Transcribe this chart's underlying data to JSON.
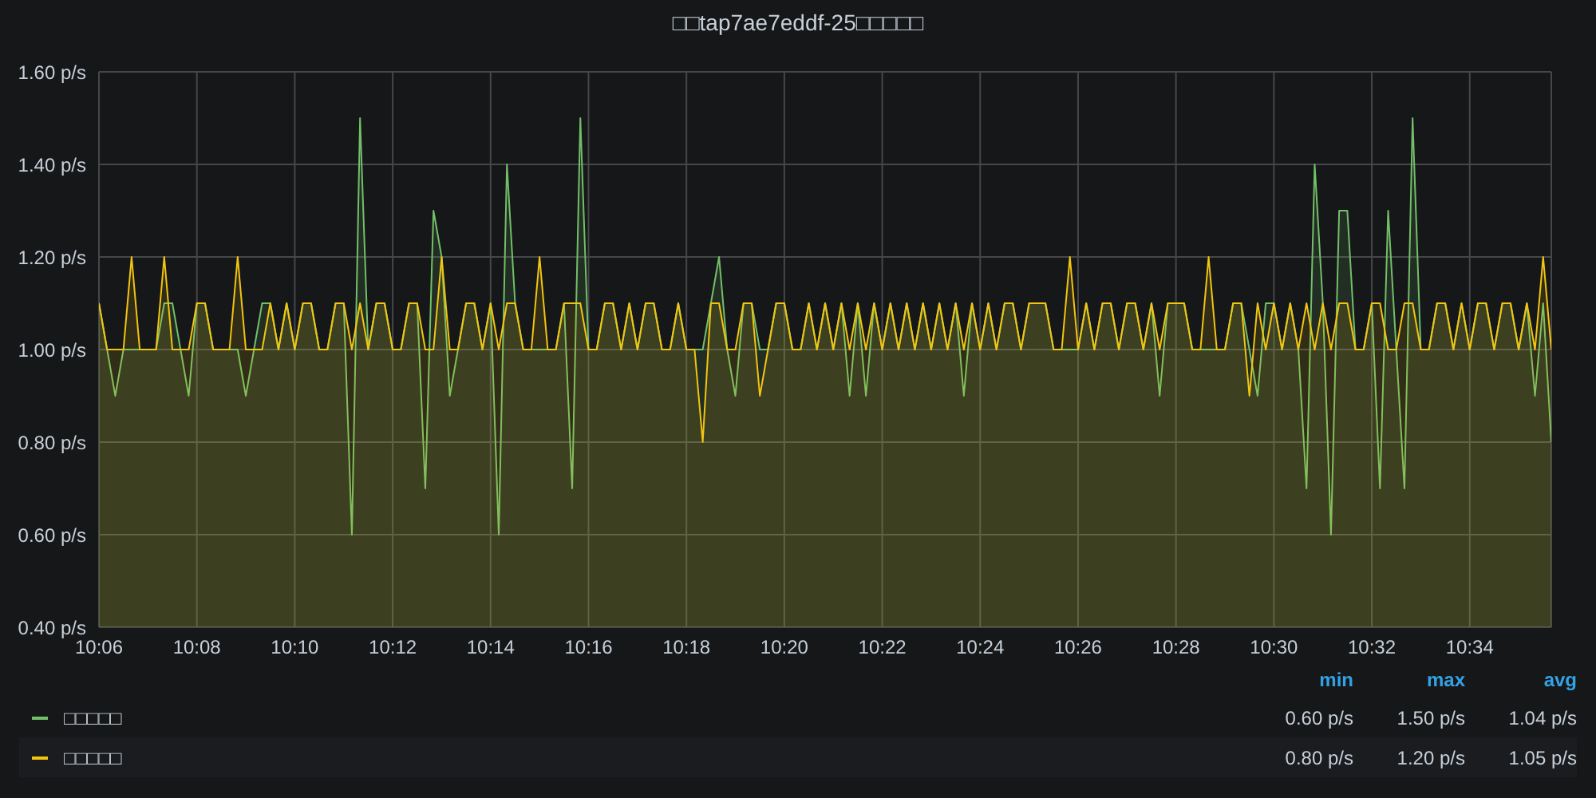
{
  "chart_data": {
    "type": "area",
    "title": "□□tap7ae7eddf-25□□□□□",
    "categories": [
      "10:06",
      null,
      null,
      null,
      null,
      null,
      null,
      null,
      null,
      null,
      null,
      null,
      "10:08",
      null,
      null,
      null,
      null,
      null,
      null,
      null,
      null,
      null,
      null,
      null,
      "10:10",
      null,
      null,
      null,
      null,
      null,
      null,
      null,
      null,
      null,
      null,
      null,
      "10:12",
      null,
      null,
      null,
      null,
      null,
      null,
      null,
      null,
      null,
      null,
      null,
      "10:14",
      null,
      null,
      null,
      null,
      null,
      null,
      null,
      null,
      null,
      null,
      null,
      "10:16",
      null,
      null,
      null,
      null,
      null,
      null,
      null,
      null,
      null,
      null,
      null,
      "10:18",
      null,
      null,
      null,
      null,
      null,
      null,
      null,
      null,
      null,
      null,
      null,
      "10:20",
      null,
      null,
      null,
      null,
      null,
      null,
      null,
      null,
      null,
      null,
      null,
      "10:22",
      null,
      null,
      null,
      null,
      null,
      null,
      null,
      null,
      null,
      null,
      null,
      "10:24",
      null,
      null,
      null,
      null,
      null,
      null,
      null,
      null,
      null,
      null,
      null,
      "10:26",
      null,
      null,
      null,
      null,
      null,
      null,
      null,
      null,
      null,
      null,
      null,
      "10:28",
      null,
      null,
      null,
      null,
      null,
      null,
      null,
      null,
      null,
      null,
      null,
      "10:30",
      null,
      null,
      null,
      null,
      null,
      null,
      null,
      null,
      null,
      null,
      null,
      "10:32",
      null,
      null,
      null,
      null,
      null,
      null,
      null,
      null,
      null,
      null,
      null,
      "10:34",
      null,
      null,
      null,
      null,
      null,
      null,
      null,
      null,
      null,
      null
    ],
    "series": [
      {
        "name": "□□□□□",
        "color": "#73bf69",
        "values": [
          1.1,
          1.0,
          0.9,
          1.0,
          1.0,
          1.0,
          1.0,
          1.0,
          1.1,
          1.1,
          1.0,
          0.9,
          1.1,
          1.1,
          1.0,
          1.0,
          1.0,
          1.0,
          0.9,
          1.0,
          1.1,
          1.1,
          1.0,
          1.1,
          1.0,
          1.1,
          1.1,
          1.0,
          1.0,
          1.1,
          1.1,
          0.6,
          1.5,
          1.0,
          1.1,
          1.1,
          1.0,
          1.0,
          1.1,
          1.1,
          0.7,
          1.3,
          1.2,
          0.9,
          1.0,
          1.1,
          1.1,
          1.0,
          1.1,
          0.6,
          1.4,
          1.1,
          1.0,
          1.0,
          1.0,
          1.0,
          1.0,
          1.1,
          0.7,
          1.5,
          1.0,
          1.0,
          1.1,
          1.1,
          1.0,
          1.1,
          1.0,
          1.1,
          1.1,
          1.0,
          1.0,
          1.1,
          1.0,
          1.0,
          1.0,
          1.1,
          1.2,
          1.0,
          0.9,
          1.1,
          1.1,
          1.0,
          1.0,
          1.1,
          1.1,
          1.0,
          1.0,
          1.1,
          1.0,
          1.1,
          1.0,
          1.1,
          0.9,
          1.1,
          0.9,
          1.1,
          1.0,
          1.1,
          1.0,
          1.1,
          1.0,
          1.1,
          1.0,
          1.1,
          1.0,
          1.1,
          0.9,
          1.1,
          1.0,
          1.1,
          1.0,
          1.1,
          1.1,
          1.0,
          1.1,
          1.1,
          1.1,
          1.0,
          1.0,
          1.0,
          1.0,
          1.1,
          1.0,
          1.1,
          1.1,
          1.0,
          1.1,
          1.1,
          1.0,
          1.1,
          0.9,
          1.1,
          1.1,
          1.1,
          1.0,
          1.0,
          1.0,
          1.0,
          1.0,
          1.1,
          1.1,
          1.0,
          0.9,
          1.1,
          1.1,
          1.0,
          1.1,
          1.0,
          0.7,
          1.4,
          1.1,
          0.6,
          1.3,
          1.3,
          1.0,
          1.0,
          1.1,
          0.7,
          1.3,
          1.0,
          0.7,
          1.5,
          1.0,
          1.0,
          1.1,
          1.1,
          1.0,
          1.1,
          1.0,
          1.1,
          1.1,
          1.0,
          1.1,
          1.1,
          1.0,
          1.1,
          0.9,
          1.1,
          0.8
        ]
      },
      {
        "name": "□□□□□",
        "color": "#f2c511",
        "values": [
          1.1,
          1.0,
          1.0,
          1.0,
          1.2,
          1.0,
          1.0,
          1.0,
          1.2,
          1.0,
          1.0,
          1.0,
          1.1,
          1.1,
          1.0,
          1.0,
          1.0,
          1.2,
          1.0,
          1.0,
          1.0,
          1.1,
          1.0,
          1.1,
          1.0,
          1.1,
          1.1,
          1.0,
          1.0,
          1.1,
          1.1,
          1.0,
          1.1,
          1.0,
          1.1,
          1.1,
          1.0,
          1.0,
          1.1,
          1.1,
          1.0,
          1.0,
          1.2,
          1.0,
          1.0,
          1.1,
          1.1,
          1.0,
          1.1,
          1.0,
          1.1,
          1.1,
          1.0,
          1.0,
          1.2,
          1.0,
          1.0,
          1.1,
          1.1,
          1.1,
          1.0,
          1.0,
          1.1,
          1.1,
          1.0,
          1.1,
          1.0,
          1.1,
          1.1,
          1.0,
          1.0,
          1.1,
          1.0,
          1.0,
          0.8,
          1.1,
          1.1,
          1.0,
          1.0,
          1.1,
          1.1,
          0.9,
          1.0,
          1.1,
          1.1,
          1.0,
          1.0,
          1.1,
          1.0,
          1.1,
          1.0,
          1.1,
          1.0,
          1.1,
          1.0,
          1.1,
          1.0,
          1.1,
          1.0,
          1.1,
          1.0,
          1.1,
          1.0,
          1.1,
          1.0,
          1.1,
          1.0,
          1.1,
          1.0,
          1.1,
          1.0,
          1.1,
          1.1,
          1.0,
          1.1,
          1.1,
          1.1,
          1.0,
          1.0,
          1.2,
          1.0,
          1.1,
          1.0,
          1.1,
          1.1,
          1.0,
          1.1,
          1.1,
          1.0,
          1.1,
          1.0,
          1.1,
          1.1,
          1.1,
          1.0,
          1.0,
          1.2,
          1.0,
          1.0,
          1.1,
          1.1,
          0.9,
          1.1,
          1.0,
          1.1,
          1.0,
          1.1,
          1.0,
          1.1,
          1.0,
          1.1,
          1.0,
          1.1,
          1.1,
          1.0,
          1.0,
          1.1,
          1.1,
          1.0,
          1.0,
          1.1,
          1.1,
          1.0,
          1.0,
          1.1,
          1.1,
          1.0,
          1.1,
          1.0,
          1.1,
          1.1,
          1.0,
          1.1,
          1.1,
          1.0,
          1.1,
          1.0,
          1.2,
          1.0
        ]
      }
    ],
    "ylim": [
      0.4,
      1.6
    ],
    "yticks": [
      {
        "value": 0.4,
        "label": "0.40 p/s"
      },
      {
        "value": 0.6,
        "label": "0.60 p/s"
      },
      {
        "value": 0.8,
        "label": "0.80 p/s"
      },
      {
        "value": 1.0,
        "label": "1.00 p/s"
      },
      {
        "value": 1.2,
        "label": "1.20 p/s"
      },
      {
        "value": 1.4,
        "label": "1.40 p/s"
      },
      {
        "value": 1.6,
        "label": "1.60 p/s"
      }
    ],
    "grid": true,
    "legend": "bottom",
    "annotations": [
      "min",
      "max",
      "avg",
      "0.60 p/s",
      "1.50 p/s",
      "1.04 p/s",
      "0.80 p/s",
      "1.20 p/s",
      "1.05 p/s"
    ]
  }
}
